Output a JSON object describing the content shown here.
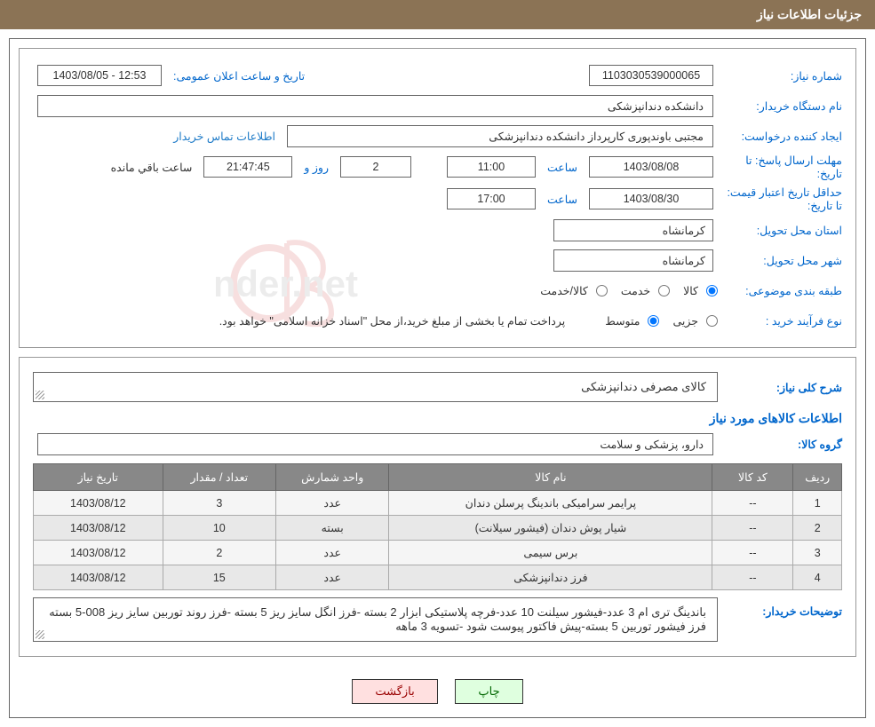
{
  "header": {
    "title": "جزئیات اطلاعات نیاز"
  },
  "top": {
    "need_number_label": "شماره نیاز:",
    "need_number": "1103030539000065",
    "announce_datetime_label": "تاریخ و ساعت اعلان عمومی:",
    "announce_datetime": "12:53 - 1403/08/05",
    "buyer_org_label": "نام دستگاه خریدار:",
    "buyer_org": "دانشکده دندانپزشکی",
    "requester_label": "ایجاد کننده درخواست:",
    "requester": "مجتبی  باوندپوری کارپرداز دانشکده دندانپزشکی",
    "contact_link": "اطلاعات تماس خریدار",
    "response_deadline_label": "مهلت ارسال پاسخ: تا تاریخ:",
    "response_date": "1403/08/08",
    "time_label": "ساعت",
    "response_time": "11:00",
    "days_remain": "2",
    "days_and_label": "روز و",
    "hours_remain": "21:47:45",
    "remain_suffix": "ساعت باقي مانده",
    "validity_label": "حداقل تاریخ اعتبار قیمت: تا تاریخ:",
    "validity_date": "1403/08/30",
    "validity_time": "17:00",
    "province_label": "استان محل تحویل:",
    "province": "کرمانشاه",
    "city_label": "شهر محل تحویل:",
    "city": "کرمانشاه",
    "category_label": "طبقه بندی موضوعی:",
    "radio_goods": "کالا",
    "radio_service": "خدمت",
    "radio_goods_service": "کالا/خدمت",
    "purchase_type_label": "نوع فرآیند خرید :",
    "radio_partial": "جزیی",
    "radio_medium": "متوسط",
    "payment_note": "پرداخت تمام یا بخشی از مبلغ خرید،از محل \"اسناد خزانه اسلامی\" خواهد بود."
  },
  "bottom": {
    "general_desc_label": "شرح کلی نیاز:",
    "general_desc": "کالای مصرفی دندانپزشکی",
    "items_info_title": "اطلاعات کالاهای مورد نیاز",
    "group_label": "گروه کالا:",
    "group_value": "دارو، پزشکی و سلامت",
    "table": {
      "columns": [
        "ردیف",
        "کد کالا",
        "نام کالا",
        "واحد شمارش",
        "تعداد / مقدار",
        "تاریخ نیاز"
      ],
      "col_widths": [
        "6%",
        "10%",
        "40%",
        "14%",
        "14%",
        "16%"
      ],
      "rows": [
        [
          "1",
          "--",
          "پرایمر سرامیکی باندینگ پرسلن دندان",
          "عدد",
          "3",
          "1403/08/12"
        ],
        [
          "2",
          "--",
          "شیار پوش دندان (فیشور سیلانت)",
          "بسته",
          "10",
          "1403/08/12"
        ],
        [
          "3",
          "--",
          "برس سیمی",
          "عدد",
          "2",
          "1403/08/12"
        ],
        [
          "4",
          "--",
          "فرز دندانپزشکی",
          "عدد",
          "15",
          "1403/08/12"
        ]
      ]
    },
    "buyer_notes_label": "توضیحات خریدار:",
    "buyer_notes": "باندینگ تری ام 3 عدد-فیشور سیلنت 10 عدد-فرچه پلاستیکی ابزار 2 بسته -فرز انگل سایز ریز 5 بسته -فرز روند توربین سایز ریز 008-5 بسته فرز فیشور توربین 5 بسته-پیش فاکتور پیوست شود -تسویه 3 ماهه"
  },
  "buttons": {
    "print": "چاپ",
    "back": "بازگشت"
  },
  "colors": {
    "header_bg": "#8b7355",
    "label_color": "#0066cc",
    "link_color": "#1e7bc8",
    "th_bg": "#888888",
    "border": "#666666"
  }
}
